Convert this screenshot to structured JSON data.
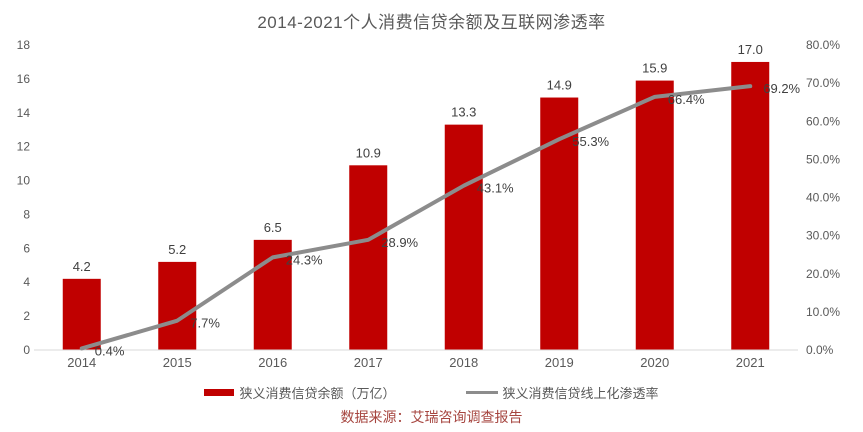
{
  "title": "2014-2021个人消费信贷余额及互联网渗透率",
  "source_note": "数据来源：艾瑞咨询调查报告",
  "colors": {
    "bar": "#C00000",
    "line": "#8C8C8C",
    "axis_text": "#595959",
    "label_text": "#404040",
    "source_text": "#A6453F",
    "baseline": "#D9D9D9"
  },
  "legend": {
    "items": [
      {
        "label": "狭义消费信贷余额（万亿）",
        "type": "bar"
      },
      {
        "label": "狭义消费信贷线上化渗透率",
        "type": "line"
      }
    ]
  },
  "chart_data": {
    "type": "combo",
    "categories": [
      "2014",
      "2015",
      "2016",
      "2017",
      "2018",
      "2019",
      "2020",
      "2021"
    ],
    "series": [
      {
        "name": "狭义消费信贷余额（万亿）",
        "type": "bar",
        "axis": "left",
        "values": [
          4.2,
          5.2,
          6.5,
          10.9,
          13.3,
          14.9,
          15.9,
          17.0
        ],
        "labels": [
          "4.2",
          "5.2",
          "6.5",
          "10.9",
          "13.3",
          "14.9",
          "15.9",
          "17.0"
        ]
      },
      {
        "name": "狭义消费信贷线上化渗透率",
        "type": "line",
        "axis": "right",
        "values": [
          0.4,
          7.7,
          24.3,
          28.9,
          43.1,
          55.3,
          66.4,
          69.2
        ],
        "labels": [
          "0.4%",
          "7.7%",
          "24.3%",
          "28.9%",
          "43.1%",
          "55.3%",
          "66.4%",
          "69.2%"
        ]
      }
    ],
    "left_axis": {
      "min": 0,
      "max": 18,
      "ticks": [
        "0",
        "2",
        "4",
        "6",
        "8",
        "10",
        "12",
        "14",
        "16",
        "18"
      ]
    },
    "right_axis": {
      "min": 0,
      "max": 80,
      "ticks": [
        "0.0%",
        "10.0%",
        "20.0%",
        "30.0%",
        "40.0%",
        "50.0%",
        "60.0%",
        "70.0%",
        "80.0%"
      ]
    },
    "grid": false,
    "legend_position": "bottom"
  }
}
